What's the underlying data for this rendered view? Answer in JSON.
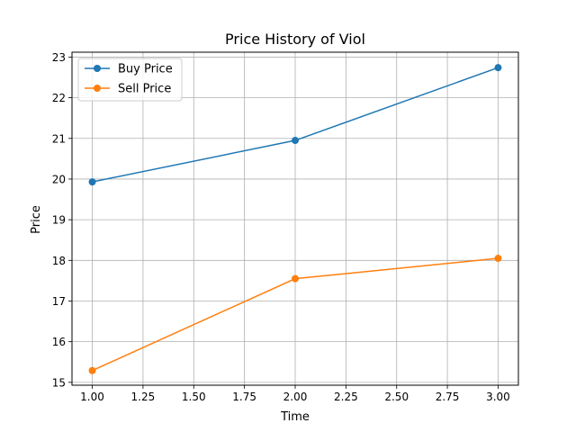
{
  "chart_data": {
    "type": "line",
    "title": "Price History of Viol",
    "xlabel": "Time",
    "ylabel": "Price",
    "xlim": [
      0.9,
      3.1
    ],
    "ylim": [
      14.93,
      23.12
    ],
    "xticks": [
      1.0,
      1.25,
      1.5,
      1.75,
      2.0,
      2.25,
      2.5,
      2.75,
      3.0
    ],
    "xtick_labels": [
      "1.00",
      "1.25",
      "1.50",
      "1.75",
      "2.00",
      "2.25",
      "2.50",
      "2.75",
      "3.00"
    ],
    "yticks": [
      15,
      16,
      17,
      18,
      19,
      20,
      21,
      22,
      23
    ],
    "ytick_labels": [
      "15",
      "16",
      "17",
      "18",
      "19",
      "20",
      "21",
      "22",
      "23"
    ],
    "grid": true,
    "legend_position": "upper-left",
    "series": [
      {
        "name": "Buy Price",
        "color": "#1f77b4",
        "x": [
          1,
          2,
          3
        ],
        "y": [
          19.93,
          20.95,
          22.74
        ]
      },
      {
        "name": "Sell Price",
        "color": "#ff7f0e",
        "x": [
          1,
          2,
          3
        ],
        "y": [
          15.29,
          17.55,
          18.05
        ]
      }
    ]
  }
}
